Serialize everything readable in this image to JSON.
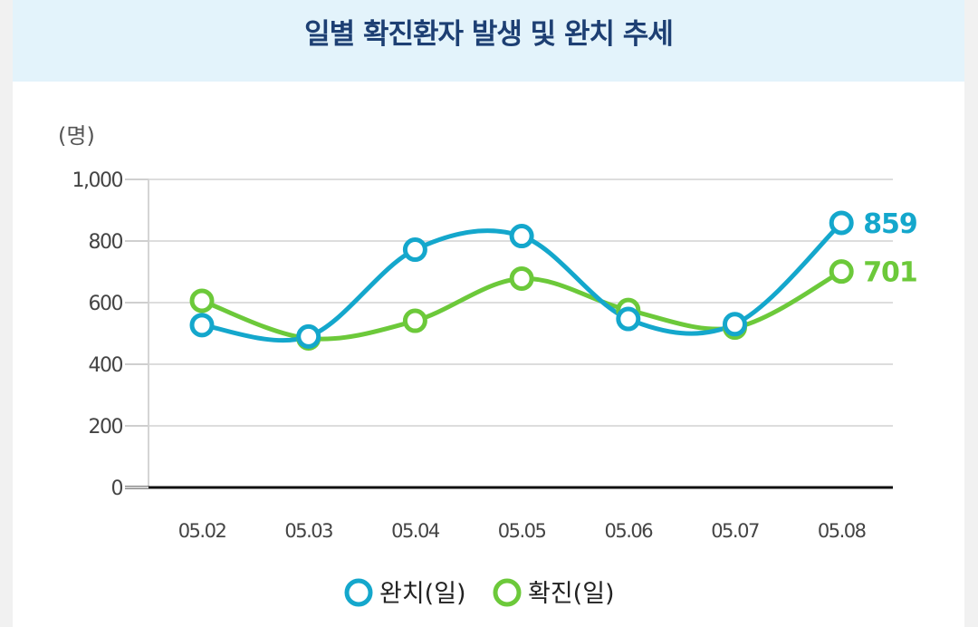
{
  "header": {
    "title": "일별 확진환자 발생 및 완치 추세"
  },
  "chart_data": {
    "type": "line",
    "title": "일별 확진환자 발생 및 완치 추세",
    "ylabel": "(명)",
    "xlabel": "",
    "ylim": [
      0,
      1000
    ],
    "yticks": [
      0,
      200,
      400,
      600,
      800,
      1000
    ],
    "ytick_labels": [
      "0",
      "200",
      "400",
      "600",
      "800",
      "1,000"
    ],
    "categories": [
      "05.02",
      "05.03",
      "05.04",
      "05.05",
      "05.06",
      "05.07",
      "05.08"
    ],
    "grid": true,
    "legend_position": "bottom",
    "series": [
      {
        "name": "완치(일)",
        "color": "#14a7cc",
        "values": [
          527,
          490,
          772,
          816,
          547,
          530,
          859
        ],
        "end_label": "859"
      },
      {
        "name": "확진(일)",
        "color": "#6cc93a",
        "values": [
          606,
          484,
          541,
          678,
          576,
          519,
          701
        ],
        "end_label": "701"
      }
    ]
  }
}
